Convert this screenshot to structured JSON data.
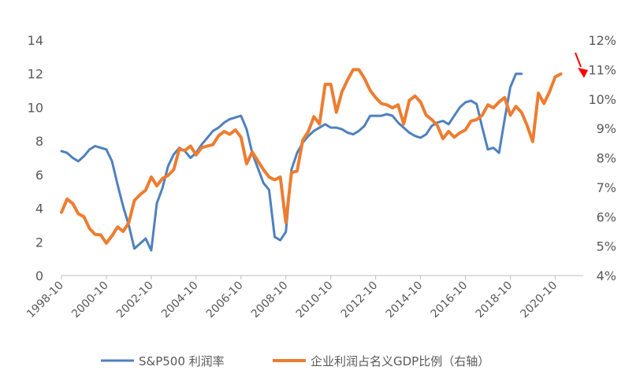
{
  "chart_data": {
    "type": "line",
    "title": "",
    "x_ticks": [
      "1998-10",
      "2000-10",
      "2002-10",
      "2004-10",
      "2006-10",
      "2008-10",
      "2010-10",
      "2012-10",
      "2014-10",
      "2016-10",
      "2018-10",
      "2020-10"
    ],
    "y_left": {
      "range": [
        0,
        14
      ],
      "ticks": [
        "0",
        "2",
        "4",
        "6",
        "8",
        "10",
        "12",
        "14"
      ]
    },
    "y_right": {
      "range": [
        4,
        12
      ],
      "ticks": [
        "4%",
        "5%",
        "6%",
        "7%",
        "8%",
        "9%",
        "10%",
        "11%",
        "12%"
      ]
    },
    "grid": false,
    "legend_position": "bottom",
    "legend": [
      "S&P500 利润率",
      "企业利润占名义GDP比例（右轴）"
    ],
    "series": [
      {
        "name": "S&P500 利润率",
        "axis": "left",
        "color": "#4f81bd",
        "points": [
          [
            "1998-10",
            7.4
          ],
          [
            "1999-01",
            7.3
          ],
          [
            "1999-04",
            7.0
          ],
          [
            "1999-07",
            6.8
          ],
          [
            "1999-10",
            7.1
          ],
          [
            "2000-01",
            7.5
          ],
          [
            "2000-04",
            7.7
          ],
          [
            "2000-07",
            7.6
          ],
          [
            "2000-10",
            7.5
          ],
          [
            "2001-01",
            6.8
          ],
          [
            "2001-04",
            5.4
          ],
          [
            "2001-07",
            4.1
          ],
          [
            "2001-10",
            3.0
          ],
          [
            "2002-01",
            1.6
          ],
          [
            "2002-04",
            1.9
          ],
          [
            "2002-07",
            2.2
          ],
          [
            "2002-10",
            1.5
          ],
          [
            "2003-01",
            4.3
          ],
          [
            "2003-04",
            5.2
          ],
          [
            "2003-07",
            6.5
          ],
          [
            "2003-10",
            7.2
          ],
          [
            "2004-01",
            7.6
          ],
          [
            "2004-04",
            7.4
          ],
          [
            "2004-07",
            7.0
          ],
          [
            "2004-10",
            7.3
          ],
          [
            "2005-01",
            7.8
          ],
          [
            "2005-04",
            8.2
          ],
          [
            "2005-07",
            8.6
          ],
          [
            "2005-10",
            8.8
          ],
          [
            "2006-01",
            9.1
          ],
          [
            "2006-04",
            9.3
          ],
          [
            "2006-07",
            9.4
          ],
          [
            "2006-10",
            9.5
          ],
          [
            "2007-01",
            8.7
          ],
          [
            "2007-04",
            7.3
          ],
          [
            "2007-07",
            6.4
          ],
          [
            "2007-10",
            5.5
          ],
          [
            "2008-01",
            5.1
          ],
          [
            "2008-04",
            2.3
          ],
          [
            "2008-07",
            2.1
          ],
          [
            "2008-10",
            2.6
          ],
          [
            "2009-01",
            6.3
          ],
          [
            "2009-04",
            7.3
          ],
          [
            "2009-07",
            7.9
          ],
          [
            "2009-10",
            8.3
          ],
          [
            "2010-01",
            8.6
          ],
          [
            "2010-04",
            8.8
          ],
          [
            "2010-07",
            9.0
          ],
          [
            "2010-10",
            8.8
          ],
          [
            "2011-01",
            8.8
          ],
          [
            "2011-04",
            8.7
          ],
          [
            "2011-07",
            8.5
          ],
          [
            "2011-10",
            8.4
          ],
          [
            "2012-01",
            8.6
          ],
          [
            "2012-04",
            8.9
          ],
          [
            "2012-07",
            9.5
          ],
          [
            "2012-10",
            9.5
          ],
          [
            "2013-01",
            9.5
          ],
          [
            "2013-04",
            9.6
          ],
          [
            "2013-07",
            9.5
          ],
          [
            "2013-10",
            9.1
          ],
          [
            "2014-01",
            8.8
          ],
          [
            "2014-04",
            8.5
          ],
          [
            "2014-07",
            8.3
          ],
          [
            "2014-10",
            8.2
          ],
          [
            "2015-01",
            8.4
          ],
          [
            "2015-04",
            8.9
          ],
          [
            "2015-07",
            9.1
          ],
          [
            "2015-10",
            9.2
          ],
          [
            "2016-01",
            9.0
          ],
          [
            "2016-04",
            9.5
          ],
          [
            "2016-07",
            10.0
          ],
          [
            "2016-10",
            10.3
          ],
          [
            "2017-01",
            10.4
          ],
          [
            "2017-04",
            10.2
          ],
          [
            "2017-07",
            8.8
          ],
          [
            "2017-10",
            7.5
          ],
          [
            "2018-01",
            7.6
          ],
          [
            "2018-04",
            7.3
          ],
          [
            "2018-07",
            9.3
          ],
          [
            "2018-10",
            11.2
          ],
          [
            "2019-01",
            12.0
          ],
          [
            "2019-04",
            12.0
          ]
        ]
      },
      {
        "name": "企业利润占名义GDP比例（右轴）",
        "axis": "right",
        "color": "#ed7d31",
        "points": [
          [
            "1998-10",
            6.15
          ],
          [
            "1999-01",
            6.6
          ],
          [
            "1999-04",
            6.45
          ],
          [
            "1999-07",
            6.1
          ],
          [
            "1999-10",
            6.0
          ],
          [
            "2000-01",
            5.6
          ],
          [
            "2000-04",
            5.4
          ],
          [
            "2000-07",
            5.38
          ],
          [
            "2000-10",
            5.1
          ],
          [
            "2001-01",
            5.35
          ],
          [
            "2001-04",
            5.65
          ],
          [
            "2001-07",
            5.5
          ],
          [
            "2001-10",
            5.8
          ],
          [
            "2002-01",
            6.55
          ],
          [
            "2002-04",
            6.75
          ],
          [
            "2002-07",
            6.9
          ],
          [
            "2002-10",
            7.35
          ],
          [
            "2003-01",
            7.05
          ],
          [
            "2003-04",
            7.3
          ],
          [
            "2003-07",
            7.4
          ],
          [
            "2003-10",
            7.6
          ],
          [
            "2004-01",
            8.3
          ],
          [
            "2004-04",
            8.25
          ],
          [
            "2004-07",
            8.4
          ],
          [
            "2004-10",
            8.1
          ],
          [
            "2005-01",
            8.35
          ],
          [
            "2005-04",
            8.4
          ],
          [
            "2005-07",
            8.45
          ],
          [
            "2005-10",
            8.75
          ],
          [
            "2006-01",
            8.9
          ],
          [
            "2006-04",
            8.8
          ],
          [
            "2006-07",
            8.95
          ],
          [
            "2006-10",
            8.7
          ],
          [
            "2007-01",
            7.8
          ],
          [
            "2007-04",
            8.2
          ],
          [
            "2007-07",
            7.9
          ],
          [
            "2007-10",
            7.6
          ],
          [
            "2008-01",
            7.35
          ],
          [
            "2008-04",
            7.25
          ],
          [
            "2008-07",
            7.35
          ],
          [
            "2008-10",
            5.8
          ],
          [
            "2009-01",
            7.5
          ],
          [
            "2009-04",
            7.55
          ],
          [
            "2009-07",
            8.6
          ],
          [
            "2009-10",
            8.9
          ],
          [
            "2010-01",
            9.4
          ],
          [
            "2010-04",
            9.15
          ],
          [
            "2010-07",
            10.5
          ],
          [
            "2010-10",
            10.5
          ],
          [
            "2011-01",
            9.55
          ],
          [
            "2011-04",
            10.25
          ],
          [
            "2011-07",
            10.65
          ],
          [
            "2011-10",
            11.0
          ],
          [
            "2012-01",
            11.0
          ],
          [
            "2012-04",
            10.7
          ],
          [
            "2012-07",
            10.3
          ],
          [
            "2012-10",
            10.05
          ],
          [
            "2013-01",
            9.85
          ],
          [
            "2013-04",
            9.8
          ],
          [
            "2013-07",
            9.7
          ],
          [
            "2013-10",
            9.8
          ],
          [
            "2014-01",
            9.15
          ],
          [
            "2014-04",
            9.95
          ],
          [
            "2014-07",
            10.1
          ],
          [
            "2014-10",
            9.9
          ],
          [
            "2015-01",
            9.45
          ],
          [
            "2015-04",
            9.3
          ],
          [
            "2015-07",
            9.1
          ],
          [
            "2015-10",
            8.65
          ],
          [
            "2016-01",
            8.9
          ],
          [
            "2016-04",
            8.7
          ],
          [
            "2016-07",
            8.85
          ],
          [
            "2016-10",
            8.95
          ],
          [
            "2017-01",
            9.25
          ],
          [
            "2017-04",
            9.3
          ],
          [
            "2017-07",
            9.45
          ],
          [
            "2017-10",
            9.8
          ],
          [
            "2018-01",
            9.7
          ],
          [
            "2018-04",
            9.9
          ],
          [
            "2018-07",
            10.05
          ],
          [
            "2018-10",
            9.45
          ],
          [
            "2019-01",
            9.75
          ],
          [
            "2019-04",
            9.55
          ],
          [
            "2019-07",
            9.1
          ],
          [
            "2019-10",
            8.55
          ],
          [
            "2020-01",
            10.2
          ],
          [
            "2020-04",
            9.85
          ],
          [
            "2020-07",
            10.25
          ],
          [
            "2020-10",
            10.75
          ],
          [
            "2021-01",
            10.85
          ]
        ]
      }
    ],
    "annotation": {
      "type": "arrow",
      "color": "#ff0000",
      "points_to": "right-axis-end"
    }
  }
}
